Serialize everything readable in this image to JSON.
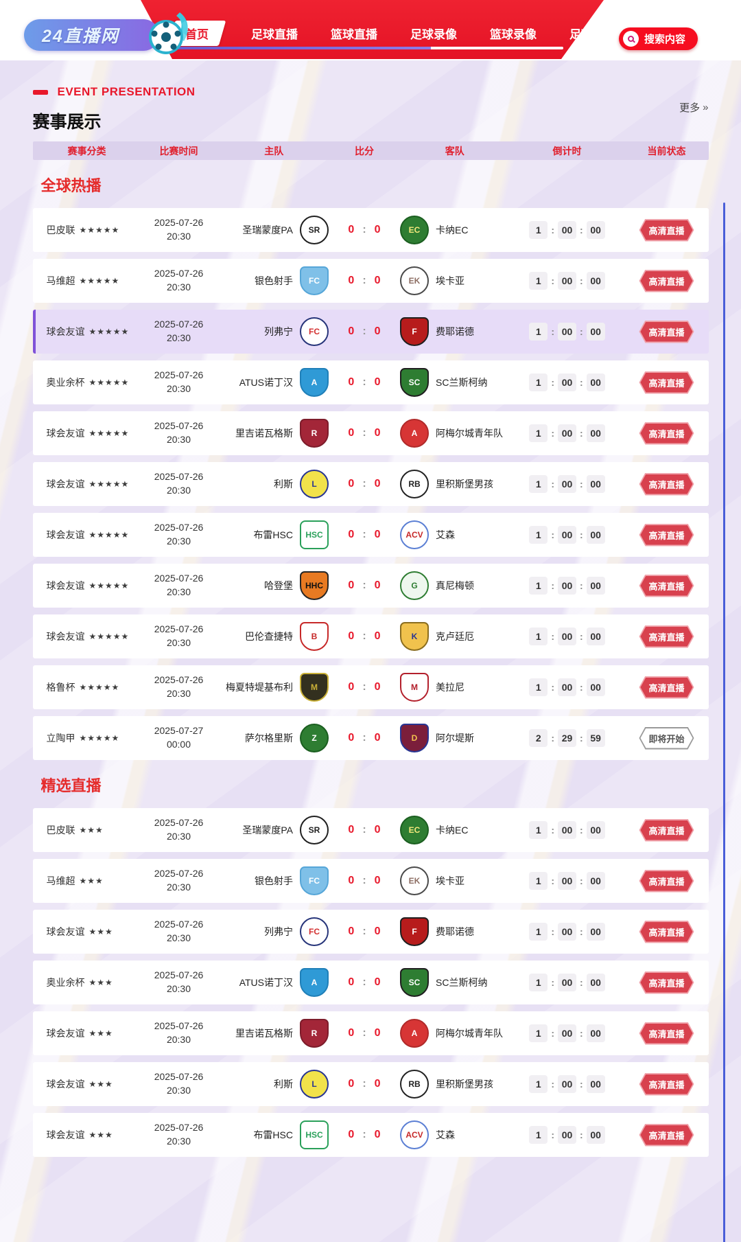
{
  "navbar": {
    "logo_text": "24直播网",
    "items": [
      {
        "label": "首页",
        "active": true
      },
      {
        "label": "足球直播",
        "active": false
      },
      {
        "label": "篮球直播",
        "active": false
      },
      {
        "label": "足球录像",
        "active": false
      },
      {
        "label": "篮球录像",
        "active": false
      },
      {
        "label": "足球",
        "active": false
      }
    ],
    "search_label": "搜索内容"
  },
  "page_head": {
    "eyebrow": "EVENT PRESENTATION",
    "title": "赛事展示",
    "more_label": "更多",
    "more_arrow": "»"
  },
  "table": {
    "headers": [
      "赛事分类",
      "比赛时间",
      "主队",
      "比分",
      "客队",
      "倒计时",
      "当前状态"
    ]
  },
  "colors": {
    "accent_red": "#e8182b",
    "badge_live": "#d8414e",
    "highlight_row": "#e7dcf8",
    "highlight_border": "#8052d8",
    "header_strip": "#dbd1ec",
    "side_line": "#4a5ed8"
  },
  "sections": [
    {
      "title": "全球热播",
      "matches": [
        {
          "league": "巴皮联",
          "stars": "★★★★★",
          "date": "2025-07-26",
          "time": "20:30",
          "home": {
            "name": "圣瑞蒙度PA",
            "abbr": "SR",
            "shape": "circle",
            "bg": "#ffffff",
            "border": "#1f1f1f",
            "fg": "#1f1f1f"
          },
          "away": {
            "name": "卡纳EC",
            "abbr": "EC",
            "shape": "circle",
            "bg": "#2e7d32",
            "border": "#1b5e20",
            "fg": "#f4e87c"
          },
          "score_home": "0",
          "score_away": "0",
          "countdown": [
            "1",
            "00",
            "00"
          ],
          "status": "高清直播",
          "status_type": "live",
          "highlighted": false
        },
        {
          "league": "马维超",
          "stars": "★★★★★",
          "date": "2025-07-26",
          "time": "20:30",
          "home": {
            "name": "银色射手",
            "abbr": "FC",
            "shape": "shield",
            "bg": "#7fc0e8",
            "border": "#56a6d8",
            "fg": "#ffffff"
          },
          "away": {
            "name": "埃卡亚",
            "abbr": "EK",
            "shape": "circle",
            "bg": "#ffffff",
            "border": "#4a4a4a",
            "fg": "#8d6e63"
          },
          "score_home": "0",
          "score_away": "0",
          "countdown": [
            "1",
            "00",
            "00"
          ],
          "status": "高清直播",
          "status_type": "live",
          "highlighted": false
        },
        {
          "league": "球会友谊",
          "stars": "★★★★★",
          "date": "2025-07-26",
          "time": "20:30",
          "home": {
            "name": "列弗宁",
            "abbr": "FC",
            "shape": "circle",
            "bg": "#ffffff",
            "border": "#27357a",
            "fg": "#d32f2f"
          },
          "away": {
            "name": "费耶诺德",
            "abbr": "F",
            "shape": "shield",
            "bg": "#b71c1c",
            "border": "#1f1f1f",
            "fg": "#ffffff"
          },
          "score_home": "0",
          "score_away": "0",
          "countdown": [
            "1",
            "00",
            "00"
          ],
          "status": "高清直播",
          "status_type": "live",
          "highlighted": true
        },
        {
          "league": "奥业余杯",
          "stars": "★★★★★",
          "date": "2025-07-26",
          "time": "20:30",
          "home": {
            "name": "ATUS诺丁汉",
            "abbr": "A",
            "shape": "shield",
            "bg": "#2f9ad6",
            "border": "#1f7fb8",
            "fg": "#ffffff"
          },
          "away": {
            "name": "SC兰斯柯纳",
            "abbr": "SC",
            "shape": "shield",
            "bg": "#2e7d32",
            "border": "#1f1f1f",
            "fg": "#ffffff"
          },
          "score_home": "0",
          "score_away": "0",
          "countdown": [
            "1",
            "00",
            "00"
          ],
          "status": "高清直播",
          "status_type": "live",
          "highlighted": false
        },
        {
          "league": "球会友谊",
          "stars": "★★★★★",
          "date": "2025-07-26",
          "time": "20:30",
          "home": {
            "name": "里吉诺瓦格斯",
            "abbr": "R",
            "shape": "shield",
            "bg": "#a32638",
            "border": "#7d1c2b",
            "fg": "#ffffff"
          },
          "away": {
            "name": "阿梅尔城青年队",
            "abbr": "A",
            "shape": "circle",
            "bg": "#d73535",
            "border": "#b02a2a",
            "fg": "#ffffff"
          },
          "score_home": "0",
          "score_away": "0",
          "countdown": [
            "1",
            "00",
            "00"
          ],
          "status": "高清直播",
          "status_type": "live",
          "highlighted": false
        },
        {
          "league": "球会友谊",
          "stars": "★★★★★",
          "date": "2025-07-26",
          "time": "20:30",
          "home": {
            "name": "利斯",
            "abbr": "L",
            "shape": "circle",
            "bg": "#f2e24b",
            "border": "#283593",
            "fg": "#283593"
          },
          "away": {
            "name": "里积斯堡男孩",
            "abbr": "RB",
            "shape": "circle",
            "bg": "#ffffff",
            "border": "#222222",
            "fg": "#222222"
          },
          "score_home": "0",
          "score_away": "0",
          "countdown": [
            "1",
            "00",
            "00"
          ],
          "status": "高清直播",
          "status_type": "live",
          "highlighted": false
        },
        {
          "league": "球会友谊",
          "stars": "★★★★★",
          "date": "2025-07-26",
          "time": "20:30",
          "home": {
            "name": "布雷HSC",
            "abbr": "HSC",
            "shape": "square",
            "bg": "#ffffff",
            "border": "#2aa05a",
            "fg": "#2aa05a"
          },
          "away": {
            "name": "艾森",
            "abbr": "ACV",
            "shape": "circle",
            "bg": "#ffffff",
            "border": "#5b7fd4",
            "fg": "#c62828"
          },
          "score_home": "0",
          "score_away": "0",
          "countdown": [
            "1",
            "00",
            "00"
          ],
          "status": "高清直播",
          "status_type": "live",
          "highlighted": false
        },
        {
          "league": "球会友谊",
          "stars": "★★★★★",
          "date": "2025-07-26",
          "time": "20:30",
          "home": {
            "name": "哈登堡",
            "abbr": "HHC",
            "shape": "shield",
            "bg": "#e87a22",
            "border": "#262626",
            "fg": "#111111"
          },
          "away": {
            "name": "真尼梅顿",
            "abbr": "G",
            "shape": "circle",
            "bg": "#eef7ee",
            "border": "#2e7d32",
            "fg": "#2e7d32"
          },
          "score_home": "0",
          "score_away": "0",
          "countdown": [
            "1",
            "00",
            "00"
          ],
          "status": "高清直播",
          "status_type": "live",
          "highlighted": false
        },
        {
          "league": "球会友谊",
          "stars": "★★★★★",
          "date": "2025-07-26",
          "time": "20:30",
          "home": {
            "name": "巴伦查捷特",
            "abbr": "B",
            "shape": "shield",
            "bg": "#ffffff",
            "border": "#c62828",
            "fg": "#c62828"
          },
          "away": {
            "name": "克卢廷厄",
            "abbr": "K",
            "shape": "shield",
            "bg": "#f0c24d",
            "border": "#8a6d1f",
            "fg": "#283593"
          },
          "score_home": "0",
          "score_away": "0",
          "countdown": [
            "1",
            "00",
            "00"
          ],
          "status": "高清直播",
          "status_type": "live",
          "highlighted": false
        },
        {
          "league": "格鲁杯",
          "stars": "★★★★★",
          "date": "2025-07-26",
          "time": "20:30",
          "home": {
            "name": "梅夏特堤基布利",
            "abbr": "M",
            "shape": "shield",
            "bg": "#33301f",
            "border": "#c9b037",
            "fg": "#c9b037"
          },
          "away": {
            "name": "美拉尼",
            "abbr": "M",
            "shape": "shield",
            "bg": "#ffffff",
            "border": "#b3202c",
            "fg": "#b3202c"
          },
          "score_home": "0",
          "score_away": "0",
          "countdown": [
            "1",
            "00",
            "00"
          ],
          "status": "高清直播",
          "status_type": "live",
          "highlighted": false
        },
        {
          "league": "立陶甲",
          "stars": "★★★★★",
          "date": "2025-07-27",
          "time": "00:00",
          "home": {
            "name": "萨尔格里斯",
            "abbr": "Z",
            "shape": "circle",
            "bg": "#2e7d32",
            "border": "#1b5e20",
            "fg": "#ffffff"
          },
          "away": {
            "name": "阿尔堤斯",
            "abbr": "D",
            "shape": "shield",
            "bg": "#7b1e3b",
            "border": "#283593",
            "fg": "#f2c14e"
          },
          "score_home": "0",
          "score_away": "0",
          "countdown": [
            "2",
            "29",
            "59"
          ],
          "status": "即将开始",
          "status_type": "upcoming",
          "highlighted": false
        }
      ]
    },
    {
      "title": "精选直播",
      "matches": [
        {
          "league": "巴皮联",
          "stars": "★★★",
          "date": "2025-07-26",
          "time": "20:30",
          "home": {
            "name": "圣瑞蒙度PA",
            "abbr": "SR",
            "shape": "circle",
            "bg": "#ffffff",
            "border": "#1f1f1f",
            "fg": "#1f1f1f"
          },
          "away": {
            "name": "卡纳EC",
            "abbr": "EC",
            "shape": "circle",
            "bg": "#2e7d32",
            "border": "#1b5e20",
            "fg": "#f4e87c"
          },
          "score_home": "0",
          "score_away": "0",
          "countdown": [
            "1",
            "00",
            "00"
          ],
          "status": "高清直播",
          "status_type": "live",
          "highlighted": false
        },
        {
          "league": "马维超",
          "stars": "★★★",
          "date": "2025-07-26",
          "time": "20:30",
          "home": {
            "name": "银色射手",
            "abbr": "FC",
            "shape": "shield",
            "bg": "#7fc0e8",
            "border": "#56a6d8",
            "fg": "#ffffff"
          },
          "away": {
            "name": "埃卡亚",
            "abbr": "EK",
            "shape": "circle",
            "bg": "#ffffff",
            "border": "#4a4a4a",
            "fg": "#8d6e63"
          },
          "score_home": "0",
          "score_away": "0",
          "countdown": [
            "1",
            "00",
            "00"
          ],
          "status": "高清直播",
          "status_type": "live",
          "highlighted": false
        },
        {
          "league": "球会友谊",
          "stars": "★★★",
          "date": "2025-07-26",
          "time": "20:30",
          "home": {
            "name": "列弗宁",
            "abbr": "FC",
            "shape": "circle",
            "bg": "#ffffff",
            "border": "#27357a",
            "fg": "#d32f2f"
          },
          "away": {
            "name": "费耶诺德",
            "abbr": "F",
            "shape": "shield",
            "bg": "#b71c1c",
            "border": "#1f1f1f",
            "fg": "#ffffff"
          },
          "score_home": "0",
          "score_away": "0",
          "countdown": [
            "1",
            "00",
            "00"
          ],
          "status": "高清直播",
          "status_type": "live",
          "highlighted": false
        },
        {
          "league": "奥业余杯",
          "stars": "★★★",
          "date": "2025-07-26",
          "time": "20:30",
          "home": {
            "name": "ATUS诺丁汉",
            "abbr": "A",
            "shape": "shield",
            "bg": "#2f9ad6",
            "border": "#1f7fb8",
            "fg": "#ffffff"
          },
          "away": {
            "name": "SC兰斯柯纳",
            "abbr": "SC",
            "shape": "shield",
            "bg": "#2e7d32",
            "border": "#1f1f1f",
            "fg": "#ffffff"
          },
          "score_home": "0",
          "score_away": "0",
          "countdown": [
            "1",
            "00",
            "00"
          ],
          "status": "高清直播",
          "status_type": "live",
          "highlighted": false
        },
        {
          "league": "球会友谊",
          "stars": "★★★",
          "date": "2025-07-26",
          "time": "20:30",
          "home": {
            "name": "里吉诺瓦格斯",
            "abbr": "R",
            "shape": "shield",
            "bg": "#a32638",
            "border": "#7d1c2b",
            "fg": "#ffffff"
          },
          "away": {
            "name": "阿梅尔城青年队",
            "abbr": "A",
            "shape": "circle",
            "bg": "#d73535",
            "border": "#b02a2a",
            "fg": "#ffffff"
          },
          "score_home": "0",
          "score_away": "0",
          "countdown": [
            "1",
            "00",
            "00"
          ],
          "status": "高清直播",
          "status_type": "live",
          "highlighted": false
        },
        {
          "league": "球会友谊",
          "stars": "★★★",
          "date": "2025-07-26",
          "time": "20:30",
          "home": {
            "name": "利斯",
            "abbr": "L",
            "shape": "circle",
            "bg": "#f2e24b",
            "border": "#283593",
            "fg": "#283593"
          },
          "away": {
            "name": "里积斯堡男孩",
            "abbr": "RB",
            "shape": "circle",
            "bg": "#ffffff",
            "border": "#222222",
            "fg": "#222222"
          },
          "score_home": "0",
          "score_away": "0",
          "countdown": [
            "1",
            "00",
            "00"
          ],
          "status": "高清直播",
          "status_type": "live",
          "highlighted": false
        },
        {
          "league": "球会友谊",
          "stars": "★★★",
          "date": "2025-07-26",
          "time": "20:30",
          "home": {
            "name": "布雷HSC",
            "abbr": "HSC",
            "shape": "square",
            "bg": "#ffffff",
            "border": "#2aa05a",
            "fg": "#2aa05a"
          },
          "away": {
            "name": "艾森",
            "abbr": "ACV",
            "shape": "circle",
            "bg": "#ffffff",
            "border": "#5b7fd4",
            "fg": "#c62828"
          },
          "score_home": "0",
          "score_away": "0",
          "countdown": [
            "1",
            "00",
            "00"
          ],
          "status": "高清直播",
          "status_type": "live",
          "highlighted": false
        }
      ]
    }
  ]
}
